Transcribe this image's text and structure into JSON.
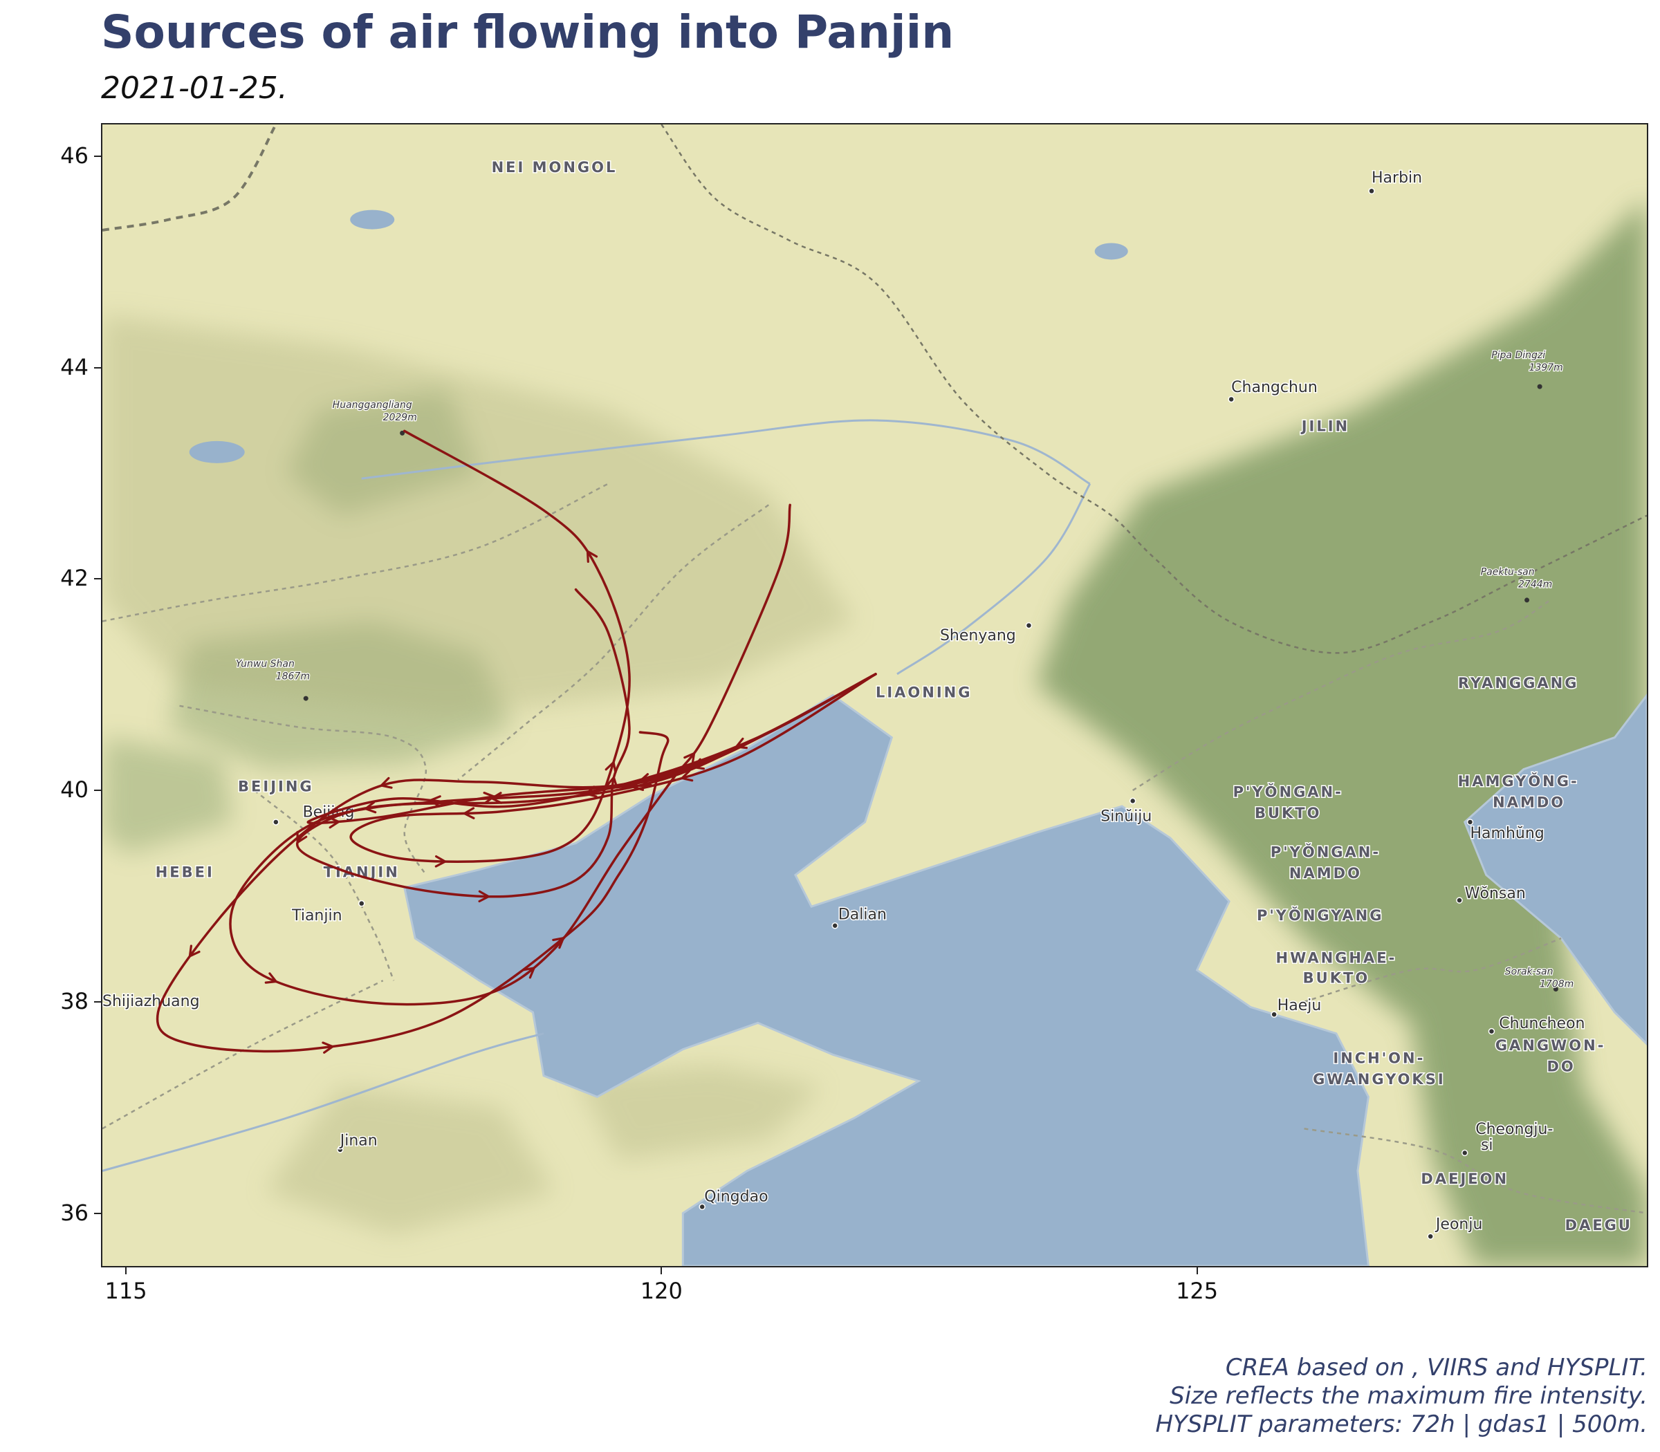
{
  "header": {
    "title": "Sources of air flowing into Panjin",
    "subtitle": "2021-01-25."
  },
  "map": {
    "extent": {
      "lon_min": 114.78,
      "lon_max": 129.2,
      "lat_min": 35.5,
      "lat_max": 46.3
    },
    "colors": {
      "land": "#e7e5b8",
      "water": "#98b2cc",
      "forest": "#6f8f58",
      "trajectory": "#8b1414",
      "label": "#333333",
      "region_label": "#5a5a66"
    },
    "x_ticks": [
      {
        "value": 115,
        "label": "115"
      },
      {
        "value": 120,
        "label": "120"
      },
      {
        "value": 125,
        "label": "125"
      }
    ],
    "y_ticks": [
      {
        "value": 36,
        "label": "36"
      },
      {
        "value": 38,
        "label": "38"
      },
      {
        "value": 40,
        "label": "40"
      },
      {
        "value": 42,
        "label": "42"
      },
      {
        "value": 44,
        "label": "44"
      },
      {
        "value": 46,
        "label": "46"
      }
    ],
    "region_labels": [
      {
        "text": "NEI MONGOL",
        "lon": 119.0,
        "lat": 45.85
      },
      {
        "text": "JILIN",
        "lon": 126.2,
        "lat": 43.4
      },
      {
        "text": "LIAONING",
        "lon": 122.45,
        "lat": 40.88
      },
      {
        "text": "RYANGGANG",
        "lon": 128.0,
        "lat": 40.97
      },
      {
        "text": "BEIJING",
        "lon": 116.4,
        "lat": 39.99
      },
      {
        "text": "HEBEI",
        "lon": 115.55,
        "lat": 39.18
      },
      {
        "text": "TIANJIN",
        "lon": 117.2,
        "lat": 39.18
      },
      {
        "text": "P'YŎNGAN-",
        "lon": 125.85,
        "lat": 39.94
      },
      {
        "text": "BUKTO",
        "lon": 125.85,
        "lat": 39.74
      },
      {
        "text": "P'YŎNGAN-",
        "lon": 126.2,
        "lat": 39.37
      },
      {
        "text": "NAMDO",
        "lon": 126.2,
        "lat": 39.17
      },
      {
        "text": "P'YŎNGYANG",
        "lon": 126.15,
        "lat": 38.77
      },
      {
        "text": "HWANGHAE-",
        "lon": 126.3,
        "lat": 38.37
      },
      {
        "text": "BUKTO",
        "lon": 126.3,
        "lat": 38.18
      },
      {
        "text": "HAMGYŎNG-",
        "lon": 128.0,
        "lat": 40.04
      },
      {
        "text": "NAMDO",
        "lon": 128.1,
        "lat": 39.84
      },
      {
        "text": "INCH'ON-",
        "lon": 126.7,
        "lat": 37.42
      },
      {
        "text": "GWANGYOKSI",
        "lon": 126.7,
        "lat": 37.22
      },
      {
        "text": "GANGWON-",
        "lon": 128.3,
        "lat": 37.54
      },
      {
        "text": "DO",
        "lon": 128.4,
        "lat": 37.34
      },
      {
        "text": "DAEJEON",
        "lon": 127.5,
        "lat": 36.28
      },
      {
        "text": "DAEGU",
        "lon": 128.75,
        "lat": 35.84
      }
    ],
    "city_labels": [
      {
        "text": "Harbin",
        "lon": 126.63,
        "lat": 45.75,
        "dot_lon": 126.63,
        "dot_lat": 45.67
      },
      {
        "text": "Changchun",
        "lon": 125.32,
        "lat": 43.77,
        "dot_lon": 125.32,
        "dot_lat": 43.7
      },
      {
        "text": "Shenyang",
        "lon": 122.6,
        "lat": 41.42,
        "dot_lon": 123.43,
        "dot_lat": 41.56
      },
      {
        "text": "Beijing",
        "lon": 116.65,
        "lat": 39.75,
        "dot_lon": 116.4,
        "dot_lat": 39.7
      },
      {
        "text": "Tianjin",
        "lon": 116.55,
        "lat": 38.77,
        "dot_lon": 117.2,
        "dot_lat": 38.93
      },
      {
        "text": "Shijiazhuang",
        "lon": 114.78,
        "lat": 37.96,
        "dot_lon": 114.5,
        "dot_lat": 38.0
      },
      {
        "text": "Dalian",
        "lon": 121.65,
        "lat": 38.78,
        "dot_lon": 121.62,
        "dot_lat": 38.72
      },
      {
        "text": "Jinan",
        "lon": 117.0,
        "lat": 36.64,
        "dot_lon": 117.0,
        "dot_lat": 36.6
      },
      {
        "text": "Qingdao",
        "lon": 120.4,
        "lat": 36.11,
        "dot_lon": 120.38,
        "dot_lat": 36.06
      },
      {
        "text": "Sinŭiju",
        "lon": 124.1,
        "lat": 39.71,
        "dot_lon": 124.4,
        "dot_lat": 39.9
      },
      {
        "text": "Hamhŭng",
        "lon": 127.55,
        "lat": 39.55,
        "dot_lon": 127.55,
        "dot_lat": 39.7
      },
      {
        "text": "Wŏnsan",
        "lon": 127.5,
        "lat": 38.98,
        "dot_lon": 127.45,
        "dot_lat": 38.96
      },
      {
        "text": "Haeju",
        "lon": 125.75,
        "lat": 37.92,
        "dot_lon": 125.72,
        "dot_lat": 37.88
      },
      {
        "text": "Chuncheon",
        "lon": 127.82,
        "lat": 37.75,
        "dot_lon": 127.75,
        "dot_lat": 37.72
      },
      {
        "text": "Cheongju-",
        "lon": 127.6,
        "lat": 36.75,
        "dot_lon": 127.5,
        "dot_lat": 36.57
      },
      {
        "text": "si",
        "lon": 127.65,
        "lat": 36.6,
        "dot_lon": null,
        "dot_lat": null
      },
      {
        "text": "Jeonju",
        "lon": 127.23,
        "lat": 35.85,
        "dot_lon": 127.18,
        "dot_lat": 35.78
      }
    ],
    "peak_labels": [
      {
        "name": "Huanggangliang",
        "elev": "2029m",
        "lon": 117.3,
        "lat": 43.5,
        "dot_lon": 117.58,
        "dot_lat": 43.38
      },
      {
        "name": "Yunwu Shan",
        "elev": "1867m",
        "lon": 116.3,
        "lat": 41.05,
        "dot_lon": 116.68,
        "dot_lat": 40.87
      },
      {
        "name": "Pipa Dingzi",
        "elev": "1397m",
        "lon": 128.0,
        "lat": 43.97,
        "dot_lon": 128.2,
        "dot_lat": 43.82
      },
      {
        "name": "Paektu-san",
        "elev": "2744m",
        "lon": 127.9,
        "lat": 41.92,
        "dot_lon": 128.08,
        "dot_lat": 41.8
      },
      {
        "name": "Sorak-san",
        "elev": "1708m",
        "lon": 128.1,
        "lat": 38.14,
        "dot_lon": 128.35,
        "dot_lat": 38.12
      }
    ],
    "trajectories": [
      {
        "name": "trajectory-1",
        "points": [
          [
            122.0,
            41.1
          ],
          [
            120.8,
            40.45
          ],
          [
            119.6,
            40.05
          ],
          [
            118.3,
            40.08
          ],
          [
            117.4,
            40.05
          ],
          [
            116.6,
            39.55
          ],
          [
            115.8,
            38.7
          ],
          [
            115.3,
            37.9
          ],
          [
            115.6,
            37.6
          ],
          [
            116.7,
            37.55
          ],
          [
            118.0,
            37.85
          ],
          [
            119.2,
            38.7
          ],
          [
            119.6,
            39.2
          ],
          [
            119.85,
            39.7
          ],
          [
            120.0,
            40.3
          ],
          [
            120.05,
            40.5
          ],
          [
            119.8,
            40.55
          ]
        ]
      },
      {
        "name": "trajectory-2",
        "points": [
          [
            122.0,
            41.1
          ],
          [
            121.0,
            40.55
          ],
          [
            120.0,
            40.1
          ],
          [
            118.8,
            39.9
          ],
          [
            117.4,
            39.85
          ],
          [
            116.6,
            39.6
          ],
          [
            116.0,
            38.9
          ],
          [
            116.2,
            38.3
          ],
          [
            117.2,
            38.0
          ],
          [
            118.3,
            38.05
          ],
          [
            119.0,
            38.5
          ],
          [
            119.6,
            39.4
          ],
          [
            120.1,
            40.1
          ],
          [
            120.45,
            40.6
          ],
          [
            121.1,
            42.1
          ],
          [
            121.2,
            42.7
          ]
        ]
      },
      {
        "name": "trajectory-3",
        "points": [
          [
            122.0,
            41.1
          ],
          [
            120.5,
            40.3
          ],
          [
            119.4,
            40.0
          ],
          [
            118.0,
            39.9
          ],
          [
            117.1,
            39.8
          ],
          [
            116.6,
            39.5
          ],
          [
            117.0,
            39.25
          ],
          [
            117.8,
            39.05
          ],
          [
            118.6,
            39.0
          ],
          [
            119.2,
            39.15
          ],
          [
            119.5,
            39.55
          ],
          [
            119.55,
            40.1
          ],
          [
            119.7,
            40.6
          ],
          [
            119.5,
            41.5
          ],
          [
            119.2,
            41.9
          ]
        ]
      },
      {
        "name": "trajectory-4",
        "points": [
          [
            122.0,
            41.1
          ],
          [
            120.7,
            40.3
          ],
          [
            119.5,
            39.95
          ],
          [
            118.5,
            39.8
          ],
          [
            117.5,
            39.75
          ],
          [
            117.1,
            39.55
          ],
          [
            117.6,
            39.35
          ],
          [
            118.6,
            39.35
          ],
          [
            119.2,
            39.55
          ],
          [
            119.5,
            40.1
          ],
          [
            119.7,
            41.1
          ],
          [
            119.4,
            42.1
          ],
          [
            118.9,
            42.65
          ],
          [
            117.6,
            43.4
          ]
        ]
      },
      {
        "name": "trajectory-5",
        "points": [
          [
            122.0,
            41.1
          ],
          [
            120.9,
            40.5
          ],
          [
            119.8,
            40.1
          ],
          [
            118.6,
            39.85
          ],
          [
            117.5,
            39.92
          ],
          [
            116.7,
            39.7
          ],
          [
            117.4,
            39.75
          ],
          [
            118.5,
            39.95
          ],
          [
            119.9,
            40.05
          ]
        ]
      }
    ],
    "source_note": "CREA based on , VIIRS and HYSPLIT.",
    "size_note": "Size reflects the maximum fire intensity.",
    "params_note": "HYSPLIT parameters: 72h | gdas1 | 500m."
  }
}
